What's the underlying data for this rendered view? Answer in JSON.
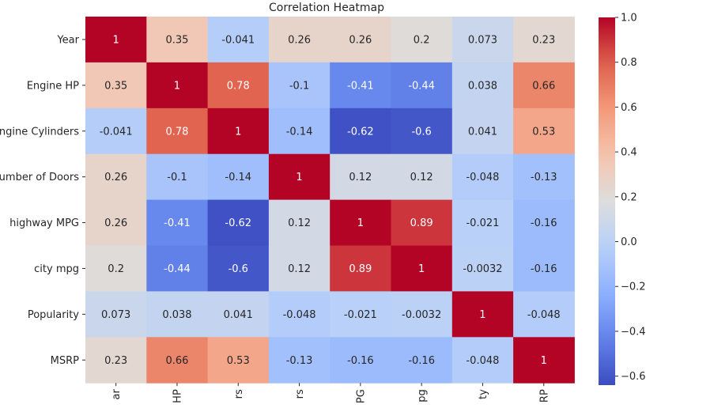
{
  "chart_data": {
    "type": "heatmap",
    "title": "Correlation Heatmap",
    "row_labels": [
      "Year",
      "Engine HP",
      "ngine Cylinders",
      "umber of Doors",
      "highway MPG",
      "city mpg",
      "Popularity",
      "MSRP"
    ],
    "col_labels": [
      "ar",
      "HP",
      "rs",
      "rs",
      "PG",
      "pg",
      "ty",
      "RP"
    ],
    "matrix": [
      [
        1,
        0.35,
        -0.041,
        0.26,
        0.26,
        0.2,
        0.073,
        0.23
      ],
      [
        0.35,
        1,
        0.78,
        -0.1,
        -0.41,
        -0.44,
        0.038,
        0.66
      ],
      [
        -0.041,
        0.78,
        1,
        -0.14,
        -0.62,
        -0.6,
        0.041,
        0.53
      ],
      [
        0.26,
        -0.1,
        -0.14,
        1,
        0.12,
        0.12,
        -0.048,
        -0.13
      ],
      [
        0.26,
        -0.41,
        -0.62,
        0.12,
        1,
        0.89,
        -0.021,
        -0.16
      ],
      [
        0.2,
        -0.44,
        -0.6,
        0.12,
        0.89,
        1,
        -0.0032,
        -0.16
      ],
      [
        0.073,
        0.038,
        0.041,
        -0.048,
        -0.021,
        -0.0032,
        1,
        -0.048
      ],
      [
        0.23,
        0.66,
        0.53,
        -0.13,
        -0.16,
        -0.16,
        -0.048,
        1
      ]
    ],
    "colormap": "coolwarm",
    "vmin": -0.64,
    "vmax": 1.0,
    "colorbar_ticks": [
      "1.0",
      "0.8",
      "0.6",
      "0.4",
      "0.2",
      "0.0",
      "−0.2",
      "−0.4",
      "−0.6"
    ],
    "colorbar_tick_values": [
      1.0,
      0.8,
      0.6,
      0.4,
      0.2,
      0.0,
      -0.2,
      -0.4,
      -0.6
    ],
    "colors": {
      "low": "#3b4cc0",
      "mid": "#dddddd",
      "high": "#b40426",
      "text_dark": "#262626",
      "text_light": "#ffffff"
    }
  }
}
